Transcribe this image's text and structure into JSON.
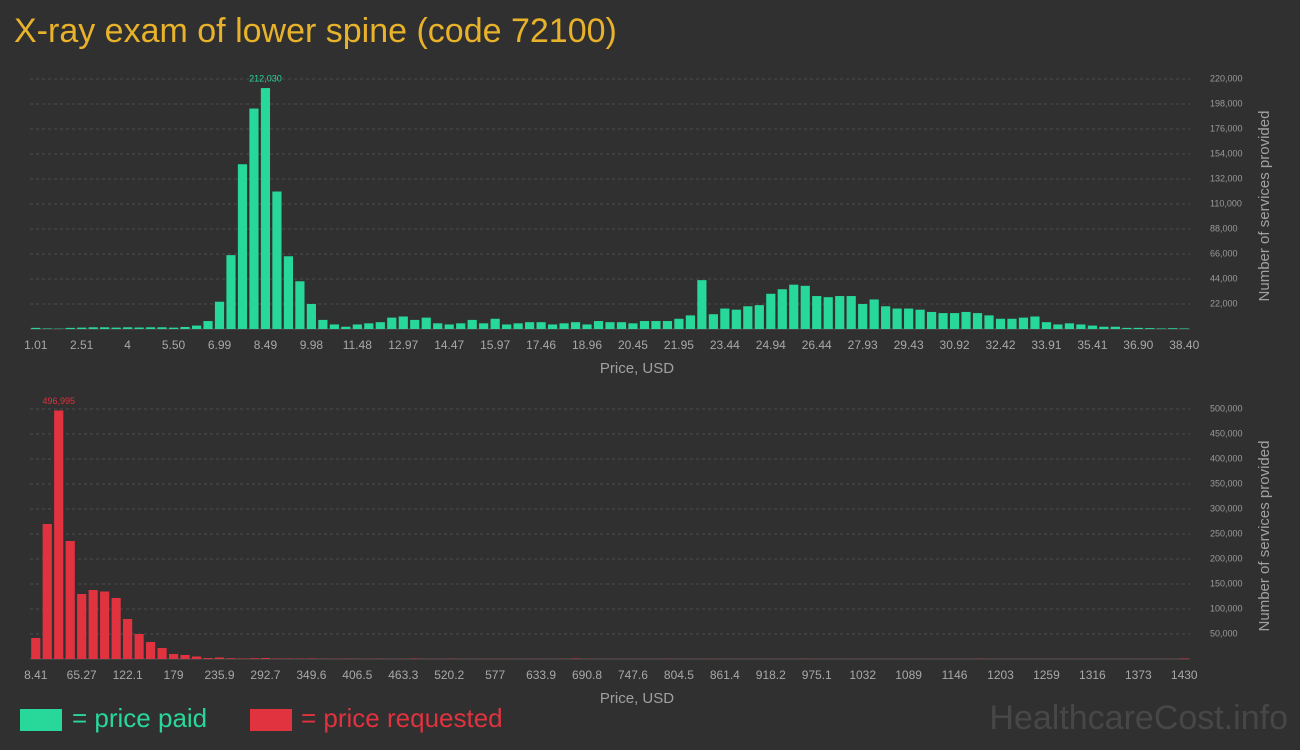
{
  "title": "X-ray exam of lower spine (code 72100)",
  "watermark": "HealthcareCost.info",
  "chart_data": [
    {
      "type": "bar",
      "xlabel": "Price, USD",
      "ylabel": "Number of services provided",
      "grid": true,
      "ylim": [
        0,
        220000
      ],
      "yticks": [
        {
          "value": 22000,
          "label": "22,000"
        },
        {
          "value": 44000,
          "label": "44,000"
        },
        {
          "value": 66000,
          "label": "66,000"
        },
        {
          "value": 88000,
          "label": "88,000"
        },
        {
          "value": 110000,
          "label": "110,000"
        },
        {
          "value": 132000,
          "label": "132,000"
        },
        {
          "value": 154000,
          "label": "154,000"
        },
        {
          "value": 176000,
          "label": "176,000"
        },
        {
          "value": 198000,
          "label": "198,000"
        },
        {
          "value": 220000,
          "label": "220,000"
        }
      ],
      "categories": [
        "1.01",
        null,
        null,
        null,
        "2.51",
        null,
        null,
        null,
        "4",
        null,
        null,
        null,
        "5.50",
        null,
        null,
        null,
        "6.99",
        null,
        null,
        null,
        "8.49",
        null,
        null,
        null,
        "9.98",
        null,
        null,
        null,
        "11.48",
        null,
        null,
        null,
        "12.97",
        null,
        null,
        null,
        "14.47",
        null,
        null,
        null,
        "15.97",
        null,
        null,
        null,
        "17.46",
        null,
        null,
        null,
        "18.96",
        null,
        null,
        null,
        "20.45",
        null,
        null,
        null,
        "21.95",
        null,
        null,
        null,
        "23.44",
        null,
        null,
        null,
        "24.94",
        null,
        null,
        null,
        "26.44",
        null,
        null,
        null,
        "27.93",
        null,
        null,
        null,
        "29.43",
        null,
        null,
        null,
        "30.92",
        null,
        null,
        null,
        "32.42",
        null,
        null,
        null,
        "33.91",
        null,
        null,
        null,
        "35.41",
        null,
        null,
        null,
        "36.90",
        null,
        null,
        null,
        "38.40"
      ],
      "series": [
        {
          "name": "= price paid",
          "color": "#27d89a",
          "values": [
            1000,
            500,
            300,
            1000,
            1200,
            1500,
            1500,
            1200,
            1500,
            1300,
            1500,
            1500,
            1200,
            1800,
            3000,
            7000,
            24000,
            65000,
            145000,
            194000,
            212030,
            121000,
            64000,
            42000,
            22000,
            8000,
            4000,
            2000,
            4000,
            5000,
            6000,
            10000,
            11000,
            8000,
            10000,
            5000,
            4000,
            5000,
            8000,
            5000,
            9000,
            4000,
            5000,
            6000,
            6000,
            4000,
            5000,
            6000,
            4000,
            7000,
            6000,
            6000,
            5000,
            7000,
            7000,
            7000,
            9000,
            12000,
            43000,
            13000,
            18000,
            17000,
            20000,
            21000,
            31000,
            35000,
            39000,
            38000,
            29000,
            28000,
            29000,
            29000,
            22000,
            26000,
            20000,
            18000,
            18000,
            17000,
            15000,
            14000,
            14000,
            15000,
            14000,
            12000,
            9000,
            9000,
            10000,
            11000,
            6000,
            4000,
            5000,
            4000,
            3000,
            2000,
            2000,
            1000,
            1000,
            800,
            500,
            700,
            500
          ],
          "value_labels": [
            null,
            null,
            null,
            null,
            null,
            null,
            null,
            null,
            null,
            null,
            null,
            null,
            null,
            null,
            null,
            null,
            null,
            null,
            null,
            null,
            "212,030",
            null,
            null,
            null,
            null,
            null,
            null,
            null,
            null,
            null,
            null,
            null,
            null,
            null,
            null,
            null,
            null,
            null,
            null,
            null,
            null,
            null,
            null,
            null,
            null,
            null,
            null,
            null,
            null,
            null,
            null,
            null,
            null,
            null,
            null,
            null,
            null,
            null,
            null,
            null,
            null,
            null,
            null,
            null,
            null,
            null,
            null,
            null,
            null,
            null,
            null,
            null,
            null,
            null,
            null,
            null,
            null,
            null,
            null,
            null,
            null,
            null,
            null,
            null,
            null,
            null,
            null,
            null,
            null,
            null,
            null,
            null,
            null,
            null,
            null,
            null,
            null,
            null,
            null,
            null,
            null
          ]
        }
      ]
    },
    {
      "type": "bar",
      "xlabel": "Price, USD",
      "ylabel": "Number of services provided",
      "grid": true,
      "ylim": [
        0,
        500000
      ],
      "yticks": [
        {
          "value": 50000,
          "label": "50,000"
        },
        {
          "value": 100000,
          "label": "100,000"
        },
        {
          "value": 150000,
          "label": "150,000"
        },
        {
          "value": 200000,
          "label": "200,000"
        },
        {
          "value": 250000,
          "label": "250,000"
        },
        {
          "value": 300000,
          "label": "300,000"
        },
        {
          "value": 350000,
          "label": "350,000"
        },
        {
          "value": 400000,
          "label": "400,000"
        },
        {
          "value": 450000,
          "label": "450,000"
        },
        {
          "value": 500000,
          "label": "500,000"
        }
      ],
      "categories": [
        "8.41",
        null,
        null,
        null,
        "65.27",
        null,
        null,
        null,
        "122.1",
        null,
        null,
        null,
        "179",
        null,
        null,
        null,
        "235.9",
        null,
        null,
        null,
        "292.7",
        null,
        null,
        null,
        "349.6",
        null,
        null,
        null,
        "406.5",
        null,
        null,
        null,
        "463.3",
        null,
        null,
        null,
        "520.2",
        null,
        null,
        null,
        "577",
        null,
        null,
        null,
        "633.9",
        null,
        null,
        null,
        "690.8",
        null,
        null,
        null,
        "747.6",
        null,
        null,
        null,
        "804.5",
        null,
        null,
        null,
        "861.4",
        null,
        null,
        null,
        "918.2",
        null,
        null,
        null,
        "975.1",
        null,
        null,
        null,
        "1032",
        null,
        null,
        null,
        "1089",
        null,
        null,
        null,
        "1146",
        null,
        null,
        null,
        "1203",
        null,
        null,
        null,
        "1259",
        null,
        null,
        null,
        "1316",
        null,
        null,
        null,
        "1373",
        null,
        null,
        null,
        "1430"
      ],
      "series": [
        {
          "name": "= price requested",
          "color": "#e0323f",
          "values": [
            42000,
            270000,
            496995,
            236000,
            130000,
            138000,
            135000,
            122000,
            80000,
            50000,
            34000,
            22000,
            10000,
            8000,
            5000,
            2000,
            3000,
            1500,
            1000,
            1500,
            2000,
            1000,
            800,
            600,
            1000,
            500,
            400,
            600,
            500,
            400,
            500,
            300,
            400,
            800,
            300,
            300,
            600,
            300,
            200,
            300,
            500,
            300,
            300,
            400,
            300,
            200,
            400,
            1000,
            300,
            200,
            300,
            200,
            300,
            200,
            200,
            400,
            200,
            200,
            300,
            500,
            200,
            200,
            300,
            200,
            200,
            300,
            200,
            500,
            200,
            200,
            200,
            300,
            200,
            200,
            200,
            300,
            200,
            200,
            200,
            300,
            200,
            200,
            600,
            300,
            200,
            200,
            200,
            200,
            200,
            200,
            200,
            300,
            200,
            200,
            200,
            200,
            200,
            200,
            200,
            200,
            1000
          ],
          "value_labels": [
            null,
            null,
            "496,995",
            null,
            null,
            null,
            null,
            null,
            null,
            null,
            null,
            null,
            null,
            null,
            null,
            null,
            null,
            null,
            null,
            null,
            null,
            null,
            null,
            null,
            null,
            null,
            null,
            null,
            null,
            null,
            null,
            null,
            null,
            null,
            null,
            null,
            null,
            null,
            null,
            null,
            null,
            null,
            null,
            null,
            null,
            null,
            null,
            null,
            null,
            null,
            null,
            null,
            null,
            null,
            null,
            null,
            null,
            null,
            null,
            null,
            null,
            null,
            null,
            null,
            null,
            null,
            null,
            null,
            null,
            null,
            null,
            null,
            null,
            null,
            null,
            null,
            null,
            null,
            null,
            null,
            null,
            null,
            null,
            null,
            null,
            null,
            null,
            null,
            null,
            null,
            null,
            null,
            null,
            null,
            null,
            null,
            null,
            null,
            null,
            null,
            null
          ]
        }
      ]
    }
  ]
}
